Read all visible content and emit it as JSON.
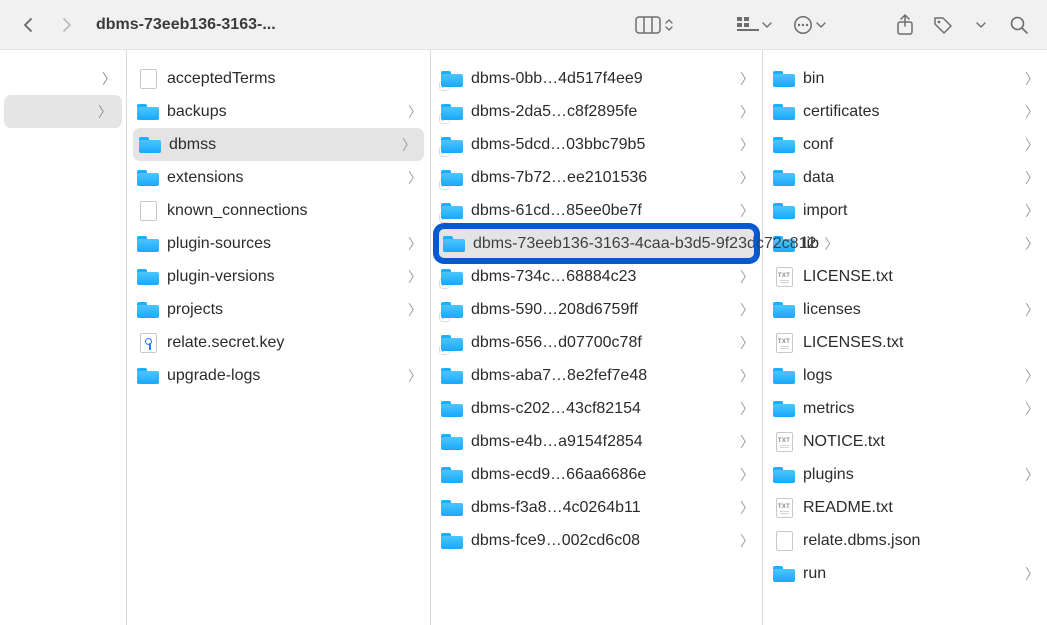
{
  "toolbar": {
    "title_truncated": "dbms-73eeb136-3163-..."
  },
  "colors": {
    "toolbar_bg": "#f1f1f2",
    "border": "#d9d9d9",
    "selected_grey": "#e4e4e4",
    "selected_ring": "#0459d0",
    "folder_top": "#4cc5ff",
    "folder_bottom": "#18a9fb",
    "text": "#2b2b2b",
    "arrow": "#9c9c9c"
  },
  "cols": {
    "c0": {
      "items": [
        {
          "type": "arrow",
          "selected": false
        },
        {
          "type": "arrow",
          "selected": true
        }
      ]
    },
    "c1": {
      "selected_index": 2,
      "items": [
        {
          "icon": "doc",
          "label": "acceptedTerms",
          "has_children": false
        },
        {
          "icon": "folder",
          "label": "backups",
          "has_children": true
        },
        {
          "icon": "folder",
          "label": "dbmss",
          "has_children": true
        },
        {
          "icon": "folder",
          "label": "extensions",
          "has_children": true
        },
        {
          "icon": "doc",
          "label": "known_connections",
          "has_children": false
        },
        {
          "icon": "folder",
          "label": "plugin-sources",
          "has_children": true
        },
        {
          "icon": "folder",
          "label": "plugin-versions",
          "has_children": true
        },
        {
          "icon": "folder",
          "label": "projects",
          "has_children": true
        },
        {
          "icon": "key",
          "label": "relate.secret.key",
          "has_children": false
        },
        {
          "icon": "folder",
          "label": "upgrade-logs",
          "has_children": true
        }
      ]
    },
    "c2": {
      "selected_index": 5,
      "selected_full_name": "dbms-73eeb136-3163-4caa-b3d5-9f23dc72c812",
      "items": [
        {
          "icon": "alias",
          "label": "dbms-0bb…4d517f4ee9",
          "has_children": true
        },
        {
          "icon": "alias",
          "label": "dbms-2da5…c8f2895fe",
          "has_children": true
        },
        {
          "icon": "alias",
          "label": "dbms-5dcd…03bbc79b5",
          "has_children": true
        },
        {
          "icon": "alias",
          "label": "dbms-7b72…ee2101536",
          "has_children": true
        },
        {
          "icon": "alias",
          "label": "dbms-61cd…85ee0be7f",
          "has_children": true
        },
        {
          "icon": "folder",
          "label": "dbms-73eeb136-3163-4caa-b3d5-9f23dc72c812",
          "has_children": true
        },
        {
          "icon": "alias",
          "label": "dbms-734c…68884c23",
          "has_children": true
        },
        {
          "icon": "alias",
          "label": "dbms-590…208d6759ff",
          "has_children": true
        },
        {
          "icon": "alias",
          "label": "dbms-656…d07700c78f",
          "has_children": true
        },
        {
          "icon": "folder",
          "label": "dbms-aba7…8e2fef7e48",
          "has_children": true
        },
        {
          "icon": "folder",
          "label": "dbms-c202…43cf82154",
          "has_children": true
        },
        {
          "icon": "folder",
          "label": "dbms-e4b…a9154f2854",
          "has_children": true
        },
        {
          "icon": "folder",
          "label": "dbms-ecd9…66aa6686e",
          "has_children": true
        },
        {
          "icon": "folder",
          "label": "dbms-f3a8…4c0264b11",
          "has_children": true
        },
        {
          "icon": "folder",
          "label": "dbms-fce9…002cd6c08",
          "has_children": true
        }
      ]
    },
    "c3": {
      "items": [
        {
          "icon": "folder",
          "label": "bin",
          "has_children": true
        },
        {
          "icon": "folder",
          "label": "certificates",
          "has_children": true
        },
        {
          "icon": "folder",
          "label": "conf",
          "has_children": true
        },
        {
          "icon": "folder",
          "label": "data",
          "has_children": true
        },
        {
          "icon": "folder",
          "label": "import",
          "has_children": true
        },
        {
          "icon": "folder",
          "label": "lib",
          "has_children": true
        },
        {
          "icon": "txt",
          "label": "LICENSE.txt",
          "has_children": false
        },
        {
          "icon": "folder",
          "label": "licenses",
          "has_children": true
        },
        {
          "icon": "txt",
          "label": "LICENSES.txt",
          "has_children": false
        },
        {
          "icon": "folder",
          "label": "logs",
          "has_children": true
        },
        {
          "icon": "folder",
          "label": "metrics",
          "has_children": true
        },
        {
          "icon": "txt",
          "label": "NOTICE.txt",
          "has_children": false
        },
        {
          "icon": "folder",
          "label": "plugins",
          "has_children": true
        },
        {
          "icon": "txt",
          "label": "README.txt",
          "has_children": false
        },
        {
          "icon": "doc",
          "label": "relate.dbms.json",
          "has_children": false
        },
        {
          "icon": "folder",
          "label": "run",
          "has_children": true
        }
      ]
    }
  }
}
